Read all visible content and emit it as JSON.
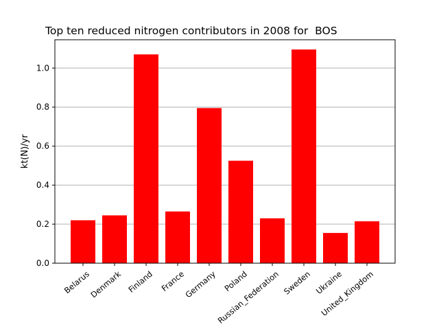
{
  "chart_data": {
    "type": "bar",
    "title": "Top ten reduced nitrogen contributors in 2008 for  BOS",
    "xlabel": "",
    "ylabel": "kt(N)/yr",
    "categories": [
      "Belarus",
      "Denmark",
      "Finland",
      "France",
      "Germany",
      "Poland",
      "Russian_Federation",
      "Sweden",
      "Ukraine",
      "United_Kingdom"
    ],
    "values": [
      0.22,
      0.245,
      1.07,
      0.265,
      0.795,
      0.525,
      0.23,
      1.095,
      0.155,
      0.215
    ],
    "ylim": [
      0,
      1.145
    ],
    "yticks": [
      0.0,
      0.2,
      0.4,
      0.6,
      0.8,
      1.0
    ],
    "ytick_labels": [
      "0.0",
      "0.2",
      "0.4",
      "0.6",
      "0.8",
      "1.0"
    ],
    "bar_color": "#ff0000",
    "grid": "y-major",
    "legend": "none"
  }
}
